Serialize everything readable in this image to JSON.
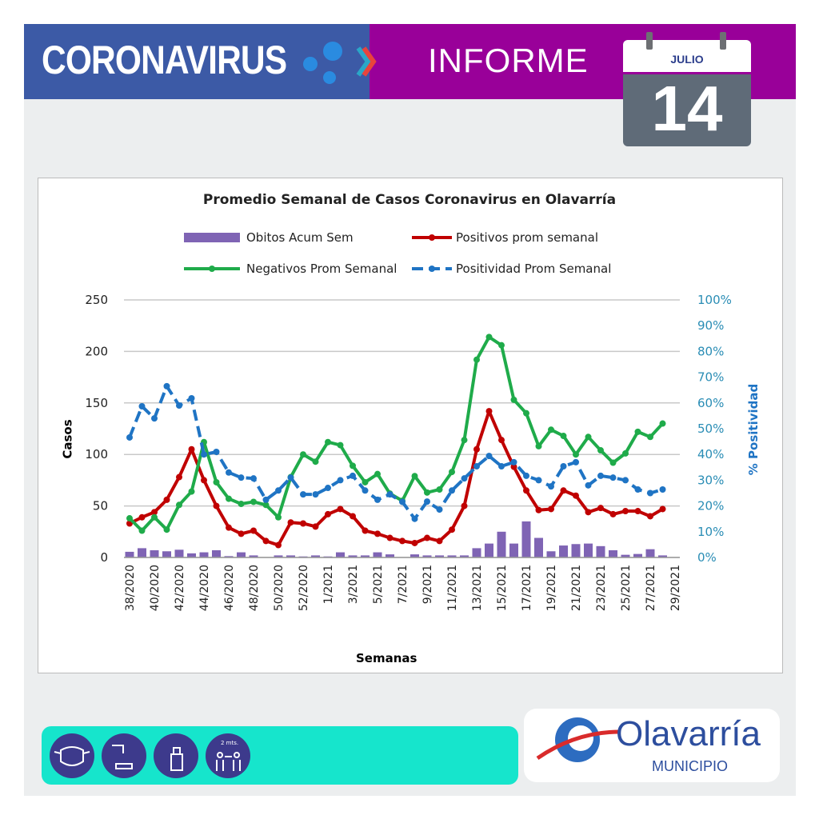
{
  "header": {
    "title": "CORONAVIRUS",
    "subtitle": "INFORME",
    "calendar": {
      "month": "JULIO",
      "day": "14"
    }
  },
  "footer": {
    "icons": [
      "face-mask-icon",
      "hand-wash-icon",
      "sanitizer-spray-icon",
      "social-distance-icon"
    ],
    "distance_label": "2 mts.",
    "logo_name": "Olavarría",
    "logo_sub": "MUNICIPIO"
  },
  "colors": {
    "header_left": "#3c5aa6",
    "header_right": "#990099",
    "obitos": "#7f64b4",
    "positivos": "#c00000",
    "negativos": "#1fab4a",
    "positividad": "#1f74c4",
    "footer_bar": "#16e5cc"
  },
  "chart_data": {
    "type": "bar+line",
    "title": "Promedio Semanal de Casos Coronavirus en Olavarría",
    "xlabel": "Semanas",
    "ylabel": "Casos",
    "y2label": "% Positividad",
    "ylim": [
      0,
      250
    ],
    "yticks": [
      "0",
      "50",
      "100",
      "150",
      "200",
      "250"
    ],
    "y2lim": [
      0,
      100
    ],
    "y2ticks": [
      "0%",
      "10%",
      "20%",
      "30%",
      "40%",
      "50%",
      "60%",
      "70%",
      "80%",
      "90%",
      "100%"
    ],
    "grid": true,
    "legend": "top",
    "x": [
      "38/2020",
      "39/2020",
      "40/2020",
      "41/2020",
      "42/2020",
      "43/2020",
      "44/2020",
      "45/2020",
      "46/2020",
      "47/2020",
      "48/2020",
      "49/2020",
      "50/2020",
      "51/2020",
      "52/2020",
      "53/2020",
      "1/2021",
      "2/2021",
      "3/2021",
      "4/2021",
      "5/2021",
      "6/2021",
      "7/2021",
      "8/2021",
      "9/2021",
      "10/2021",
      "11/2021",
      "12/2021",
      "13/2021",
      "14/2021",
      "15/2021",
      "16/2021",
      "17/2021",
      "18/2021",
      "19/2021",
      "20/2021",
      "21/2021",
      "22/2021",
      "23/2021",
      "24/2021",
      "25/2021",
      "26/2021",
      "27/2021",
      "28/2021",
      "29/2021"
    ],
    "tick_labels": [
      "38/2020",
      "40/2020",
      "42/2020",
      "44/2020",
      "46/2020",
      "48/2020",
      "50/2020",
      "52/2020",
      "1/2021",
      "3/2021",
      "5/2021",
      "7/2021",
      "9/2021",
      "11/2021",
      "13/2021",
      "15/2021",
      "17/2021",
      "19/2021",
      "21/2021",
      "23/2021",
      "25/2021",
      "27/2021",
      "29/2021"
    ],
    "series": [
      {
        "name": "Obitos Acum Sem",
        "type": "bar",
        "axis": "left",
        "values": [
          5.5,
          9,
          7,
          6,
          7.5,
          4,
          5,
          7,
          1.3,
          5,
          2,
          0,
          2,
          2,
          1,
          2,
          1,
          5,
          2,
          2,
          5,
          3,
          0,
          3,
          2,
          2,
          2,
          2,
          9,
          13.5,
          25,
          13.5,
          35,
          19,
          6,
          11.6,
          13,
          13.5,
          11,
          7,
          2.6,
          3.4,
          8,
          2,
          null
        ]
      },
      {
        "name": "Positivos prom semanal",
        "type": "line",
        "axis": "left",
        "values": [
          33,
          39,
          44,
          56,
          78,
          105,
          75,
          50,
          29,
          23,
          26,
          16,
          12,
          34,
          33,
          30,
          42,
          47,
          40,
          26,
          23,
          19,
          16,
          14,
          19,
          16,
          27,
          50,
          105,
          142,
          114,
          88,
          65,
          46,
          47,
          65,
          60,
          44,
          48,
          42,
          45,
          45,
          40,
          47,
          null
        ]
      },
      {
        "name": "Negativos Prom Semanal",
        "type": "line",
        "axis": "left",
        "values": [
          38,
          26,
          39,
          27,
          51,
          64,
          112,
          73,
          57,
          52,
          54,
          51,
          39,
          78,
          100,
          93,
          112,
          109,
          89,
          73,
          81,
          62,
          55,
          79,
          63,
          66,
          83,
          114,
          192,
          214,
          206,
          153,
          140,
          108,
          124,
          118,
          100,
          117,
          104,
          92,
          101,
          122,
          117,
          130,
          null
        ]
      },
      {
        "name": "Positividad Prom Semanal",
        "type": "dashed-line",
        "axis": "right",
        "unit": "%",
        "values": [
          46.6,
          58.7,
          54,
          66.5,
          59,
          61.8,
          40,
          41,
          33,
          31,
          30.7,
          22.4,
          26,
          31,
          24.5,
          24.5,
          27,
          30,
          31.7,
          26,
          22.4,
          24.5,
          21.6,
          15,
          21.7,
          18.6,
          26,
          30.7,
          35.4,
          39.4,
          35.4,
          37,
          31.7,
          30,
          27.6,
          35.4,
          37,
          28,
          31.7,
          31,
          30,
          26.4,
          25,
          26.4,
          null
        ]
      }
    ]
  }
}
